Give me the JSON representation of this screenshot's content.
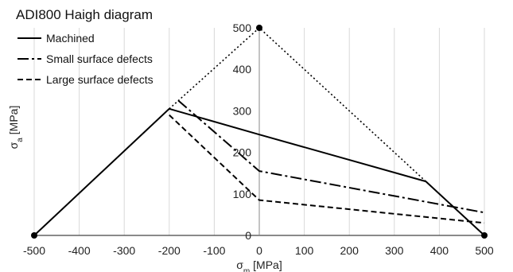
{
  "chart_data": {
    "type": "line",
    "title": "ADI800 Haigh diagram",
    "xlabel": {
      "main": "σ",
      "sub": "m",
      "unit": " [MPa]"
    },
    "ylabel": {
      "main": "σ",
      "sub": "a",
      "unit": " [MPa]"
    },
    "xlim": [
      -500,
      500
    ],
    "ylim": [
      0,
      500
    ],
    "xticks": [
      -500,
      -400,
      -300,
      -200,
      -100,
      0,
      100,
      200,
      300,
      400,
      500
    ],
    "yticks": [
      0,
      100,
      200,
      300,
      400,
      500
    ],
    "grid": "vertical",
    "legend_position": "top-left",
    "series": [
      {
        "name": "Machined",
        "dash": "solid",
        "color": "#000000",
        "points": [
          [
            -500,
            0
          ],
          [
            -200,
            305
          ],
          [
            0,
            243
          ],
          [
            370,
            130
          ],
          [
            500,
            0
          ]
        ]
      },
      {
        "name": "Small surface defects",
        "dash": "dashdot",
        "color": "#000000",
        "points": [
          [
            -180,
            325
          ],
          [
            0,
            155
          ],
          [
            500,
            55
          ]
        ]
      },
      {
        "name": "Large surface defects",
        "dash": "dashed",
        "color": "#000000",
        "points": [
          [
            -200,
            290
          ],
          [
            0,
            85
          ],
          [
            500,
            30
          ]
        ]
      }
    ],
    "boundary": {
      "dash": "dotted",
      "color": "#000000",
      "points": [
        [
          -200,
          305
        ],
        [
          0,
          500
        ],
        [
          370,
          130
        ]
      ]
    },
    "markers": [
      [
        -500,
        0
      ],
      [
        0,
        500
      ],
      [
        500,
        0
      ]
    ]
  }
}
